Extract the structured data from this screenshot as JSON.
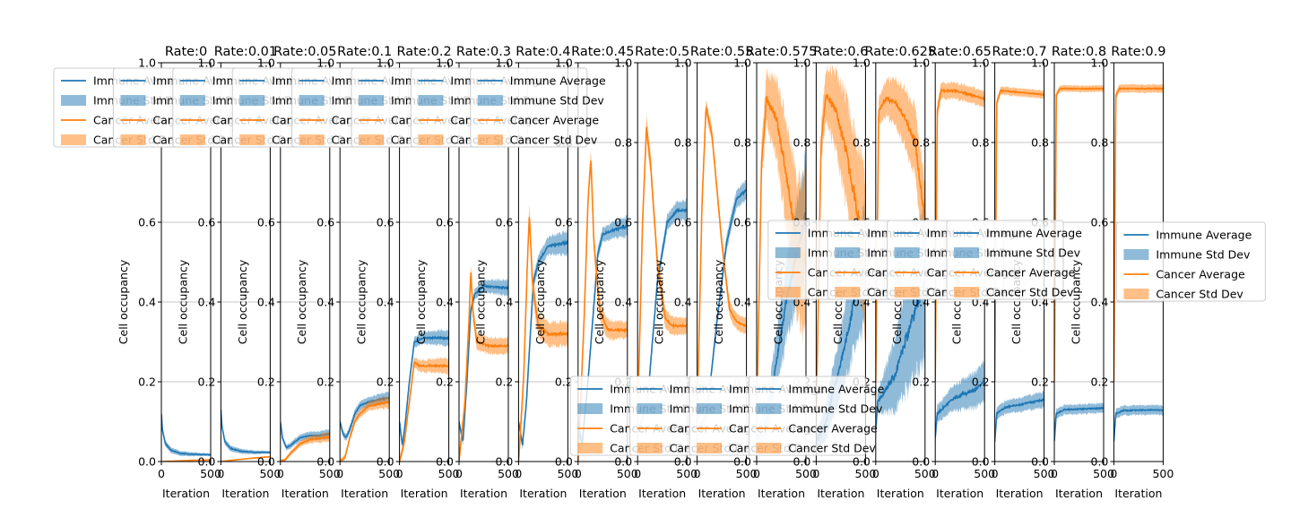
{
  "colors": {
    "immune": "#1f77b4",
    "cancer": "#ff7f0e",
    "grid": "#b0b0b0",
    "axis": "#000000"
  },
  "common": {
    "ylabel": "Cell occupancy",
    "xlabel": "Iteration",
    "ylim": [
      0,
      1.0
    ],
    "xlim": [
      0,
      500
    ],
    "yticks": [
      "0.0",
      "0.2",
      "0.4",
      "0.6",
      "0.8",
      "1.0"
    ],
    "xticks": [
      "0",
      "500"
    ],
    "legend_labels": [
      "Immune Average",
      "Immune Std Dev",
      "Cancer Average",
      "Cancer Std Dev"
    ]
  },
  "chart_data": [
    {
      "type": "line",
      "title": "Rate:0",
      "legend": "upper-left",
      "immune": {
        "avg": [
          [
            0,
            0.12
          ],
          [
            10,
            0.08
          ],
          [
            40,
            0.045
          ],
          [
            100,
            0.028
          ],
          [
            200,
            0.02
          ],
          [
            350,
            0.018
          ],
          [
            500,
            0.017
          ]
        ],
        "sd": [
          0.008,
          0.003
        ]
      },
      "cancer": {
        "avg": [
          [
            0,
            0
          ],
          [
            100,
            0.001
          ],
          [
            300,
            0.003
          ],
          [
            500,
            0.004
          ]
        ],
        "sd": [
          0.001,
          0.001
        ]
      }
    },
    {
      "type": "line",
      "title": "Rate:0.01",
      "legend": "upper-left",
      "immune": {
        "avg": [
          [
            0,
            0.13
          ],
          [
            10,
            0.09
          ],
          [
            40,
            0.05
          ],
          [
            100,
            0.033
          ],
          [
            200,
            0.026
          ],
          [
            350,
            0.023
          ],
          [
            500,
            0.023
          ]
        ],
        "sd": [
          0.008,
          0.003
        ]
      },
      "cancer": {
        "avg": [
          [
            0,
            0
          ],
          [
            100,
            0.003
          ],
          [
            300,
            0.008
          ],
          [
            500,
            0.012
          ]
        ],
        "sd": [
          0.001,
          0.002
        ]
      }
    },
    {
      "type": "line",
      "title": "Rate:0.05",
      "legend": "upper-left",
      "immune": {
        "avg": [
          [
            0,
            0.1
          ],
          [
            20,
            0.06
          ],
          [
            60,
            0.035
          ],
          [
            100,
            0.04
          ],
          [
            200,
            0.06
          ],
          [
            300,
            0.065
          ],
          [
            400,
            0.065
          ],
          [
            500,
            0.07
          ]
        ],
        "sd": [
          0.006,
          0.012
        ]
      },
      "cancer": {
        "avg": [
          [
            0,
            0
          ],
          [
            50,
            0.005
          ],
          [
            100,
            0.02
          ],
          [
            200,
            0.045
          ],
          [
            300,
            0.055
          ],
          [
            400,
            0.058
          ],
          [
            500,
            0.062
          ]
        ],
        "sd": [
          0.004,
          0.012
        ]
      }
    },
    {
      "type": "line",
      "title": "Rate:0.1",
      "legend": "upper-left",
      "immune": {
        "avg": [
          [
            0,
            0.1
          ],
          [
            30,
            0.07
          ],
          [
            60,
            0.06
          ],
          [
            100,
            0.08
          ],
          [
            150,
            0.12
          ],
          [
            200,
            0.14
          ],
          [
            300,
            0.15
          ],
          [
            400,
            0.155
          ],
          [
            500,
            0.16
          ]
        ],
        "sd": [
          0.008,
          0.015
        ]
      },
      "cancer": {
        "avg": [
          [
            0,
            0
          ],
          [
            50,
            0.01
          ],
          [
            100,
            0.06
          ],
          [
            150,
            0.1
          ],
          [
            200,
            0.12
          ],
          [
            300,
            0.14
          ],
          [
            400,
            0.145
          ],
          [
            500,
            0.15
          ]
        ],
        "sd": [
          0.006,
          0.015
        ]
      }
    },
    {
      "type": "line",
      "title": "Rate:0.2",
      "legend": "upper-left",
      "immune": {
        "avg": [
          [
            0,
            0.1
          ],
          [
            30,
            0.04
          ],
          [
            60,
            0.1
          ],
          [
            100,
            0.2
          ],
          [
            150,
            0.3
          ],
          [
            250,
            0.31
          ],
          [
            500,
            0.31
          ]
        ],
        "sd": [
          0.01,
          0.02
        ]
      },
      "cancer": {
        "avg": [
          [
            0,
            0
          ],
          [
            50,
            0.05
          ],
          [
            100,
            0.15
          ],
          [
            150,
            0.25
          ],
          [
            200,
            0.24
          ],
          [
            350,
            0.24
          ],
          [
            500,
            0.24
          ]
        ],
        "sd": [
          0.01,
          0.02
        ]
      }
    },
    {
      "type": "line",
      "title": "Rate:0.3",
      "legend": "upper-left",
      "immune": {
        "avg": [
          [
            0,
            0.1
          ],
          [
            40,
            0.05
          ],
          [
            80,
            0.2
          ],
          [
            120,
            0.38
          ],
          [
            160,
            0.42
          ],
          [
            250,
            0.44
          ],
          [
            500,
            0.435
          ]
        ],
        "sd": [
          0.01,
          0.02
        ]
      },
      "cancer": {
        "avg": [
          [
            0,
            0
          ],
          [
            60,
            0.15
          ],
          [
            100,
            0.35
          ],
          [
            120,
            0.48
          ],
          [
            140,
            0.38
          ],
          [
            180,
            0.3
          ],
          [
            300,
            0.29
          ],
          [
            500,
            0.29
          ]
        ],
        "sd": [
          0.02,
          0.02
        ]
      }
    },
    {
      "type": "line",
      "title": "Rate:0.4",
      "legend": "upper-left",
      "immune": {
        "avg": [
          [
            0,
            0.1
          ],
          [
            40,
            0.04
          ],
          [
            80,
            0.15
          ],
          [
            150,
            0.45
          ],
          [
            200,
            0.5
          ],
          [
            300,
            0.54
          ],
          [
            500,
            0.55
          ]
        ],
        "sd": [
          0.01,
          0.03
        ]
      },
      "cancer": {
        "avg": [
          [
            0,
            0
          ],
          [
            50,
            0.2
          ],
          [
            90,
            0.5
          ],
          [
            110,
            0.62
          ],
          [
            140,
            0.45
          ],
          [
            200,
            0.34
          ],
          [
            300,
            0.32
          ],
          [
            500,
            0.32
          ]
        ],
        "sd": [
          0.03,
          0.03
        ]
      }
    },
    {
      "type": "line",
      "title": "Rate:0.45",
      "legend": "upper-left",
      "immune": {
        "avg": [
          [
            0,
            0.1
          ],
          [
            40,
            0.04
          ],
          [
            100,
            0.2
          ],
          [
            200,
            0.52
          ],
          [
            250,
            0.57
          ],
          [
            350,
            0.58
          ],
          [
            500,
            0.59
          ]
        ],
        "sd": [
          0.01,
          0.025
        ]
      },
      "cancer": {
        "avg": [
          [
            0,
            0
          ],
          [
            60,
            0.35
          ],
          [
            100,
            0.65
          ],
          [
            130,
            0.76
          ],
          [
            160,
            0.55
          ],
          [
            220,
            0.38
          ],
          [
            300,
            0.33
          ],
          [
            500,
            0.33
          ]
        ],
        "sd": [
          0.03,
          0.02
        ]
      }
    },
    {
      "type": "line",
      "title": "Rate:0.5",
      "legend": "lower-right",
      "immune": {
        "avg": [
          [
            0,
            0.07
          ],
          [
            100,
            0.15
          ],
          [
            200,
            0.45
          ],
          [
            300,
            0.6
          ],
          [
            400,
            0.63
          ],
          [
            500,
            0.63
          ]
        ],
        "sd": [
          0.01,
          0.025
        ]
      },
      "cancer": {
        "avg": [
          [
            0,
            0.1
          ],
          [
            50,
            0.6
          ],
          [
            90,
            0.84
          ],
          [
            130,
            0.75
          ],
          [
            200,
            0.5
          ],
          [
            280,
            0.36
          ],
          [
            350,
            0.34
          ],
          [
            500,
            0.34
          ]
        ],
        "sd": [
          0.03,
          0.02
        ]
      }
    },
    {
      "type": "line",
      "title": "Rate:0.55",
      "legend": "lower-right",
      "immune": {
        "avg": [
          [
            0,
            0.07
          ],
          [
            100,
            0.12
          ],
          [
            200,
            0.35
          ],
          [
            300,
            0.55
          ],
          [
            400,
            0.66
          ],
          [
            500,
            0.68
          ]
        ],
        "sd": [
          0.01,
          0.025
        ]
      },
      "cancer": {
        "avg": [
          [
            0,
            0.1
          ],
          [
            50,
            0.65
          ],
          [
            90,
            0.89
          ],
          [
            150,
            0.82
          ],
          [
            250,
            0.55
          ],
          [
            330,
            0.38
          ],
          [
            400,
            0.35
          ],
          [
            500,
            0.34
          ]
        ],
        "sd": [
          0.02,
          0.02
        ]
      }
    },
    {
      "type": "line",
      "title": "Rate:0.575",
      "legend": "lower-right",
      "immune": {
        "avg": [
          [
            0,
            0.05
          ],
          [
            100,
            0.1
          ],
          [
            200,
            0.25
          ],
          [
            300,
            0.4
          ],
          [
            400,
            0.52
          ],
          [
            500,
            0.62
          ]
        ],
        "sd": [
          0.02,
          0.15
        ]
      },
      "cancer": {
        "avg": [
          [
            0,
            0.1
          ],
          [
            50,
            0.75
          ],
          [
            100,
            0.91
          ],
          [
            200,
            0.86
          ],
          [
            300,
            0.72
          ],
          [
            400,
            0.55
          ],
          [
            500,
            0.5
          ]
        ],
        "sd": [
          0.03,
          0.2
        ]
      }
    },
    {
      "type": "line",
      "title": "Rate:0.6",
      "legend": "lower-right",
      "immune": {
        "avg": [
          [
            0,
            0.05
          ],
          [
            100,
            0.1
          ],
          [
            200,
            0.2
          ],
          [
            300,
            0.3
          ],
          [
            400,
            0.42
          ],
          [
            500,
            0.5
          ]
        ],
        "sd": [
          0.02,
          0.15
        ]
      },
      "cancer": {
        "avg": [
          [
            0,
            0.1
          ],
          [
            50,
            0.8
          ],
          [
            100,
            0.92
          ],
          [
            200,
            0.88
          ],
          [
            300,
            0.78
          ],
          [
            400,
            0.65
          ],
          [
            500,
            0.5
          ]
        ],
        "sd": [
          0.03,
          0.2
        ]
      }
    },
    {
      "type": "line",
      "title": "Rate:0.625",
      "legend": "center-left",
      "immune": {
        "avg": [
          [
            0,
            0.08
          ],
          [
            20,
            0.15
          ],
          [
            100,
            0.18
          ],
          [
            200,
            0.22
          ],
          [
            300,
            0.3
          ],
          [
            400,
            0.38
          ],
          [
            500,
            0.45
          ]
        ],
        "sd": [
          0.02,
          0.2
        ]
      },
      "cancer": {
        "avg": [
          [
            0,
            0.2
          ],
          [
            30,
            0.88
          ],
          [
            100,
            0.91
          ],
          [
            200,
            0.9
          ],
          [
            300,
            0.86
          ],
          [
            400,
            0.8
          ],
          [
            500,
            0.6
          ]
        ],
        "sd": [
          0.03,
          0.1
        ]
      }
    },
    {
      "type": "line",
      "title": "Rate:0.65",
      "legend": "center-left",
      "immune": {
        "avg": [
          [
            0,
            0.06
          ],
          [
            20,
            0.12
          ],
          [
            100,
            0.14
          ],
          [
            200,
            0.16
          ],
          [
            300,
            0.17
          ],
          [
            400,
            0.18
          ],
          [
            500,
            0.2
          ]
        ],
        "sd": [
          0.02,
          0.05
        ]
      },
      "cancer": {
        "avg": [
          [
            0,
            0.2
          ],
          [
            20,
            0.88
          ],
          [
            60,
            0.93
          ],
          [
            200,
            0.93
          ],
          [
            350,
            0.92
          ],
          [
            500,
            0.91
          ]
        ],
        "sd": [
          0.02,
          0.02
        ]
      }
    },
    {
      "type": "line",
      "title": "Rate:0.7",
      "legend": "center-left",
      "immune": {
        "avg": [
          [
            0,
            0.05
          ],
          [
            20,
            0.12
          ],
          [
            100,
            0.135
          ],
          [
            200,
            0.14
          ],
          [
            300,
            0.145
          ],
          [
            400,
            0.15
          ],
          [
            500,
            0.155
          ]
        ],
        "sd": [
          0.015,
          0.02
        ]
      },
      "cancer": {
        "avg": [
          [
            0,
            0.2
          ],
          [
            20,
            0.9
          ],
          [
            60,
            0.93
          ],
          [
            500,
            0.92
          ]
        ],
        "sd": [
          0.01,
          0.01
        ]
      }
    },
    {
      "type": "line",
      "title": "Rate:0.8",
      "legend": "center-left",
      "immune": {
        "avg": [
          [
            0,
            0.05
          ],
          [
            20,
            0.12
          ],
          [
            100,
            0.13
          ],
          [
            300,
            0.132
          ],
          [
            500,
            0.134
          ]
        ],
        "sd": [
          0.012,
          0.012
        ]
      },
      "cancer": {
        "avg": [
          [
            0,
            0.2
          ],
          [
            20,
            0.92
          ],
          [
            60,
            0.935
          ],
          [
            500,
            0.935
          ]
        ],
        "sd": [
          0.008,
          0.008
        ]
      }
    },
    {
      "type": "line",
      "title": "Rate:0.9",
      "legend": "right-outside",
      "immune": {
        "avg": [
          [
            0,
            0.05
          ],
          [
            20,
            0.12
          ],
          [
            100,
            0.128
          ],
          [
            300,
            0.129
          ],
          [
            500,
            0.129
          ]
        ],
        "sd": [
          0.012,
          0.012
        ]
      },
      "cancer": {
        "avg": [
          [
            0,
            0.2
          ],
          [
            20,
            0.92
          ],
          [
            60,
            0.935
          ],
          [
            500,
            0.935
          ]
        ],
        "sd": [
          0.01,
          0.01
        ]
      }
    }
  ]
}
